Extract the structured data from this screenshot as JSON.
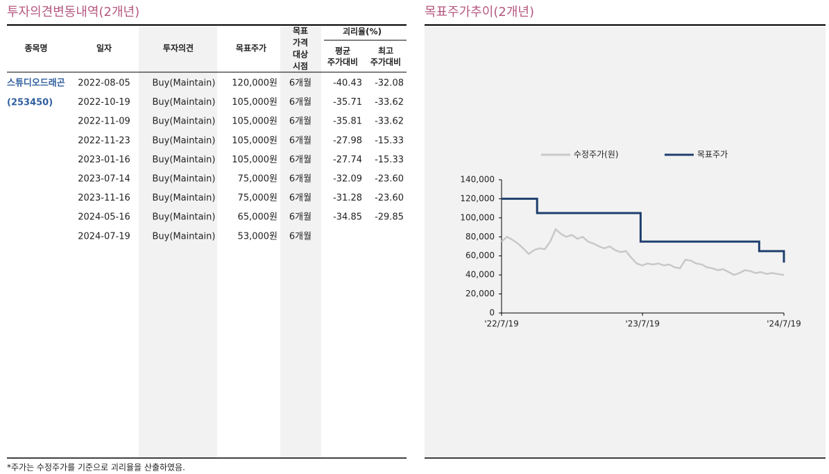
{
  "left_title": "투자의견변동내역(2개년)",
  "right_title": "목표주가추이(2개년)",
  "footnote": "*주가는 수정주가를 기준으로 괴리율을 산출하였음.",
  "table": {
    "headers": [
      "종목명",
      "일자",
      "투자의견",
      "목표주가",
      [
        "목표",
        "가격",
        "대상",
        "시점"
      ]
    ],
    "group": {
      "label": "괴리율(%)",
      "columns": [
        [
          "평균",
          "주가대비"
        ],
        [
          "최고",
          "주가대비"
        ]
      ]
    },
    "company": {
      "name": "스튜디오드래곤",
      "code": "(253450)"
    },
    "rows": [
      [
        "2022-08-05",
        "Buy(Maintain)",
        "120,000원",
        "6개월",
        "-40.43",
        "-32.08"
      ],
      [
        "2022-10-19",
        "Buy(Maintain)",
        "105,000원",
        "6개월",
        "-35.71",
        "-33.62"
      ],
      [
        "2022-11-09",
        "Buy(Maintain)",
        "105,000원",
        "6개월",
        "-35.81",
        "-33.62"
      ],
      [
        "2022-11-23",
        "Buy(Maintain)",
        "105,000원",
        "6개월",
        "-27.98",
        "-15.33"
      ],
      [
        "2023-01-16",
        "Buy(Maintain)",
        "105,000원",
        "6개월",
        "-27.74",
        "-15.33"
      ],
      [
        "2023-07-14",
        "Buy(Maintain)",
        "75,000원",
        "6개월",
        "-32.09",
        "-23.60"
      ],
      [
        "2023-11-16",
        "Buy(Maintain)",
        "75,000원",
        "6개월",
        "-31.28",
        "-23.60"
      ],
      [
        "2024-05-16",
        "Buy(Maintain)",
        "65,000원",
        "6개월",
        "-34.85",
        "-29.85"
      ],
      [
        "2024-07-19",
        "Buy(Maintain)",
        "53,000원",
        "6개월"
      ]
    ]
  },
  "chart_data": {
    "type": "line",
    "xlim": [
      "2022-07-19",
      "2024-07-19"
    ],
    "xticks": [
      {
        "value": "2022-07-19",
        "label": "'22/7/19"
      },
      {
        "value": "2023-07-19",
        "label": "'23/7/19"
      },
      {
        "value": "2024-07-19",
        "label": "'24/7/19"
      }
    ],
    "ylim": [
      0,
      140000
    ],
    "yticks": [
      0,
      {
        "value": 20000,
        "label": "20,000"
      },
      {
        "value": 40000,
        "label": "40,000"
      },
      {
        "value": 60000,
        "label": "60,000"
      },
      {
        "value": 80000,
        "label": "80,000"
      },
      {
        "value": 100000,
        "label": "100,000"
      },
      {
        "value": 120000,
        "label": "120,000"
      },
      {
        "value": 140000,
        "label": "140,000"
      }
    ],
    "legend": "top",
    "series": [
      {
        "name": "수정주가(원)",
        "color": "#c8c8c8",
        "x": [
          "2022-07-19",
          "2022-08-02",
          "2022-08-16",
          "2022-08-30",
          "2022-09-13",
          "2022-09-27",
          "2022-10-11",
          "2022-10-25",
          "2022-11-08",
          "2022-11-22",
          "2022-12-06",
          "2022-12-20",
          "2023-01-03",
          "2023-01-17",
          "2023-01-31",
          "2023-02-14",
          "2023-02-28",
          "2023-03-14",
          "2023-03-28",
          "2023-04-11",
          "2023-04-25",
          "2023-05-09",
          "2023-05-23",
          "2023-06-06",
          "2023-06-20",
          "2023-07-04",
          "2023-07-18",
          "2023-08-01",
          "2023-08-15",
          "2023-08-29",
          "2023-09-12",
          "2023-09-26",
          "2023-10-10",
          "2023-10-24",
          "2023-11-07",
          "2023-11-21",
          "2023-12-05",
          "2023-12-19",
          "2024-01-02",
          "2024-01-16",
          "2024-01-30",
          "2024-02-13",
          "2024-02-27",
          "2024-03-12",
          "2024-03-26",
          "2024-04-09",
          "2024-04-23",
          "2024-05-07",
          "2024-05-21",
          "2024-06-04",
          "2024-06-18",
          "2024-07-02",
          "2024-07-19"
        ],
        "values": [
          75000,
          80000,
          77000,
          73000,
          68000,
          62000,
          66000,
          68000,
          67000,
          75000,
          88000,
          83000,
          80000,
          82000,
          78000,
          80000,
          75000,
          73000,
          70000,
          68000,
          70000,
          66000,
          64000,
          65000,
          58000,
          52000,
          50000,
          52000,
          51000,
          52000,
          50000,
          51000,
          48000,
          47000,
          56000,
          55000,
          52000,
          51000,
          48000,
          47000,
          45000,
          46000,
          43000,
          40000,
          42000,
          45000,
          44000,
          42000,
          43000,
          41000,
          42000,
          41000,
          40000
        ]
      },
      {
        "name": "목표주가",
        "color": "#1f3f6e",
        "step": "after",
        "x": [
          "2022-07-19",
          "2022-10-19",
          "2023-07-14",
          "2024-05-16",
          "2024-07-19"
        ],
        "values": [
          120000,
          105000,
          75000,
          65000,
          53000
        ]
      }
    ]
  }
}
